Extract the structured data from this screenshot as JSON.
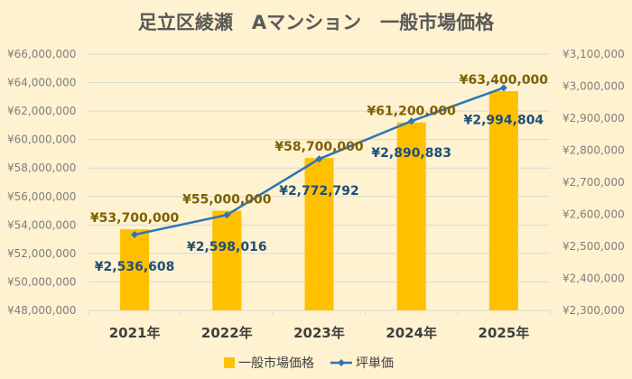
{
  "chart_data": {
    "type": "bar+line",
    "title": "足立区綾瀬　Aマンション　一般市場価格",
    "categories": [
      "2021年",
      "2022年",
      "2023年",
      "2024年",
      "2025年"
    ],
    "series": [
      {
        "name": "一般市場価格",
        "type": "bar",
        "axis": "left",
        "color": "#ffc000",
        "values": [
          53700000,
          55000000,
          58700000,
          61200000,
          63400000
        ],
        "labels": [
          "¥53,700,000",
          "¥55,000,000",
          "¥58,700,000",
          "¥61,200,000",
          "¥63,400,000"
        ]
      },
      {
        "name": "坪単価",
        "type": "line",
        "axis": "right",
        "color": "#2e75b6",
        "values": [
          2536608,
          2598016,
          2772792,
          2890883,
          2994804
        ],
        "labels": [
          "¥2,536,608",
          "¥2,598,016",
          "¥2,772,792",
          "¥2,890,883",
          "¥2,994,804"
        ]
      }
    ],
    "left_axis": {
      "min": 48000000,
      "max": 66000000,
      "step": 2000000,
      "ticks": [
        "¥48,000,000",
        "¥50,000,000",
        "¥52,000,000",
        "¥54,000,000",
        "¥56,000,000",
        "¥58,000,000",
        "¥60,000,000",
        "¥62,000,000",
        "¥64,000,000",
        "¥66,000,000"
      ]
    },
    "right_axis": {
      "min": 2300000,
      "max": 3100000,
      "step": 100000,
      "ticks": [
        "¥2,300,000",
        "¥2,400,000",
        "¥2,500,000",
        "¥2,600,000",
        "¥2,700,000",
        "¥2,800,000",
        "¥2,900,000",
        "¥3,000,000",
        "¥3,100,000"
      ]
    },
    "grid": true,
    "legend": "bottom"
  }
}
